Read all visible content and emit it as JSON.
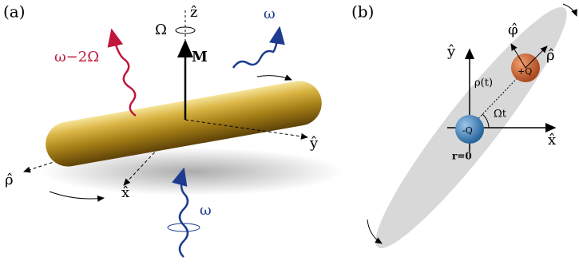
{
  "panel_a": {
    "label": "(a)",
    "z_axis": "ẑ",
    "rotation": "Ω",
    "omega_incident_top": "ω",
    "omega_scattered": "ω−2Ω",
    "moment": "M",
    "y_axis": "ŷ",
    "rho_axis": "ρ̂",
    "x_axis": "x̂",
    "omega_incident_bottom": "ω"
  },
  "panel_b": {
    "label": "(b)",
    "y_axis": "ŷ",
    "phi_axis": "φ̂",
    "rho_axis": "ρ̂",
    "positive_charge": "+Q",
    "distance": "ρ(t)",
    "angle": "Ωt",
    "negative_charge": "-Q",
    "x_axis": "x̂",
    "origin": "r=0"
  }
}
